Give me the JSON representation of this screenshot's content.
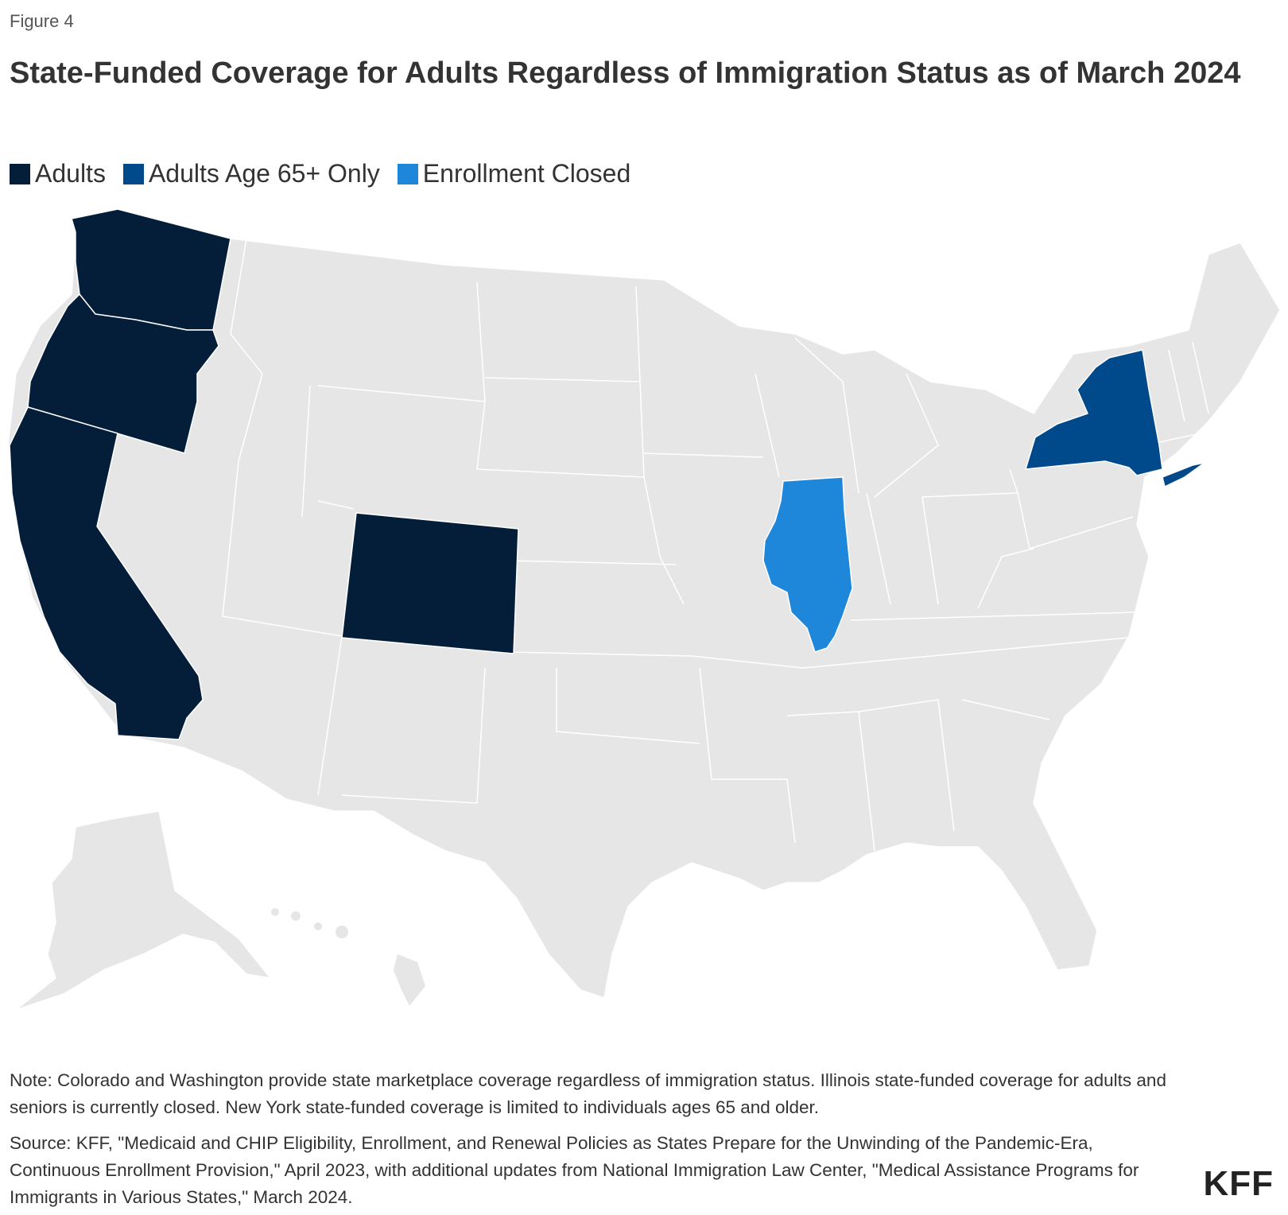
{
  "figure_label": "Figure 4",
  "title": "State-Funded Coverage for Adults Regardless of Immigration Status as of March 2024",
  "legend": [
    {
      "label": "Adults",
      "color": "#041e3a"
    },
    {
      "label": "Adults Age 65+ Only",
      "color": "#004a8c"
    },
    {
      "label": "Enrollment Closed",
      "color": "#1e87da"
    }
  ],
  "colors": {
    "other_states": "#e6e6e6",
    "borders": "#ffffff"
  },
  "map_data": {
    "type": "choropleth",
    "region": "United States",
    "categories": {
      "Adults": [
        "California",
        "Oregon",
        "Washington",
        "Colorado"
      ],
      "Adults Age 65+ Only": [
        "New York"
      ],
      "Enrollment Closed": [
        "Illinois"
      ]
    }
  },
  "note": "Note: Colorado and Washington provide state marketplace coverage regardless of immigration status. Illinois state-funded coverage for adults and seniors is currently closed. New York state-funded coverage is limited to individuals ages 65 and older.",
  "source": "Source: KFF, \"Medicaid and CHIP Eligibility, Enrollment, and Renewal Policies as States Prepare for the Unwinding of the Pandemic-Era, Continuous Enrollment Provision,\" April 2023, with additional updates from National Immigration Law Center, \"Medical Assistance Programs for Immigrants in Various States,\" March 2024.",
  "logo": "KFF"
}
